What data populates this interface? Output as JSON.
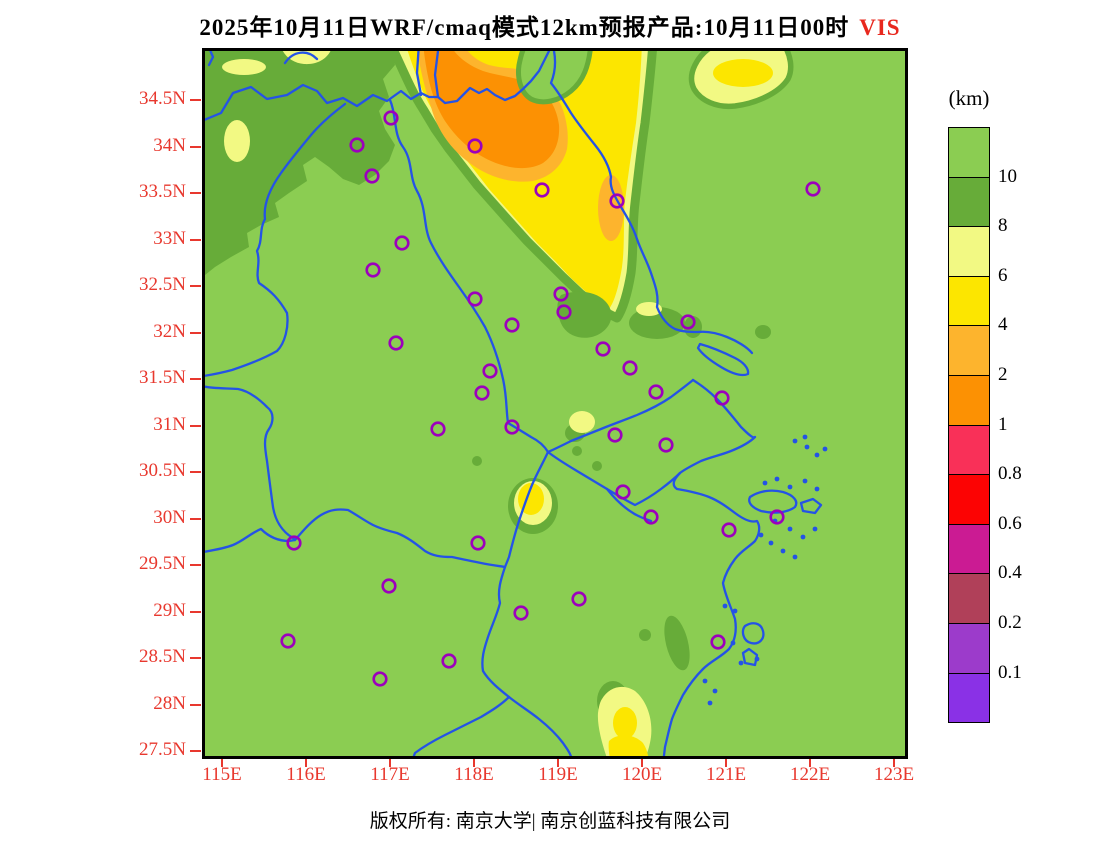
{
  "title": {
    "main": "2025年10月11日WRF/cmaq模式12km预报产品:10月11日00时",
    "variable": "VIS"
  },
  "footer": "版权所有: 南京大学| 南京创蓝科技有限公司",
  "axes": {
    "lat_labels": [
      "34.5N",
      "34N",
      "33.5N",
      "33N",
      "32.5N",
      "32N",
      "31.5N",
      "31N",
      "30.5N",
      "30N",
      "29.5N",
      "29N",
      "28.5N",
      "28N",
      "27.5N"
    ],
    "lon_labels": [
      "115E",
      "116E",
      "117E",
      "118E",
      "119E",
      "120E",
      "121E",
      "122E",
      "123E"
    ],
    "label_color": "#e8382e"
  },
  "colorbar": {
    "unit": "(km)",
    "labels": [
      "10",
      "8",
      "6",
      "4",
      "2",
      "1",
      "0.8",
      "0.6",
      "0.4",
      "0.2",
      "0.1"
    ],
    "segment_colors_top_to_bottom": [
      "#8BCD52",
      "#67AC39",
      "#F2F983",
      "#FCE600",
      "#FDB42D",
      "#FC9103",
      "#F93058",
      "#FC0303",
      "#CB1B93",
      "#B04059",
      "#9C3BCB",
      "#8A31E6"
    ]
  },
  "map": {
    "palette": {
      "base": "#8BCD52",
      "dk": "#67AC39",
      "pale": "#F2F983",
      "yel": "#FCE600",
      "amb": "#FDB42D",
      "org": "#FC9103",
      "border_blue": "#2453E6",
      "marker_purple": "#9C00BC"
    },
    "markers": [
      [
        186,
        67
      ],
      [
        152,
        94
      ],
      [
        270,
        95
      ],
      [
        167,
        125
      ],
      [
        337,
        139
      ],
      [
        412,
        150
      ],
      [
        197,
        192
      ],
      [
        168,
        219
      ],
      [
        356,
        243
      ],
      [
        359,
        261
      ],
      [
        270,
        248
      ],
      [
        307,
        274
      ],
      [
        483,
        271
      ],
      [
        608,
        138
      ],
      [
        191,
        292
      ],
      [
        285,
        320
      ],
      [
        277,
        342
      ],
      [
        451,
        341
      ],
      [
        517,
        347
      ],
      [
        398,
        298
      ],
      [
        425,
        317
      ],
      [
        233,
        378
      ],
      [
        307,
        376
      ],
      [
        410,
        384
      ],
      [
        461,
        394
      ],
      [
        418,
        441
      ],
      [
        446,
        466
      ],
      [
        572,
        466
      ],
      [
        524,
        479
      ],
      [
        89,
        492
      ],
      [
        273,
        492
      ],
      [
        184,
        535
      ],
      [
        374,
        548
      ],
      [
        316,
        562
      ],
      [
        83,
        590
      ],
      [
        244,
        610
      ],
      [
        175,
        628
      ],
      [
        513,
        591
      ]
    ]
  }
}
